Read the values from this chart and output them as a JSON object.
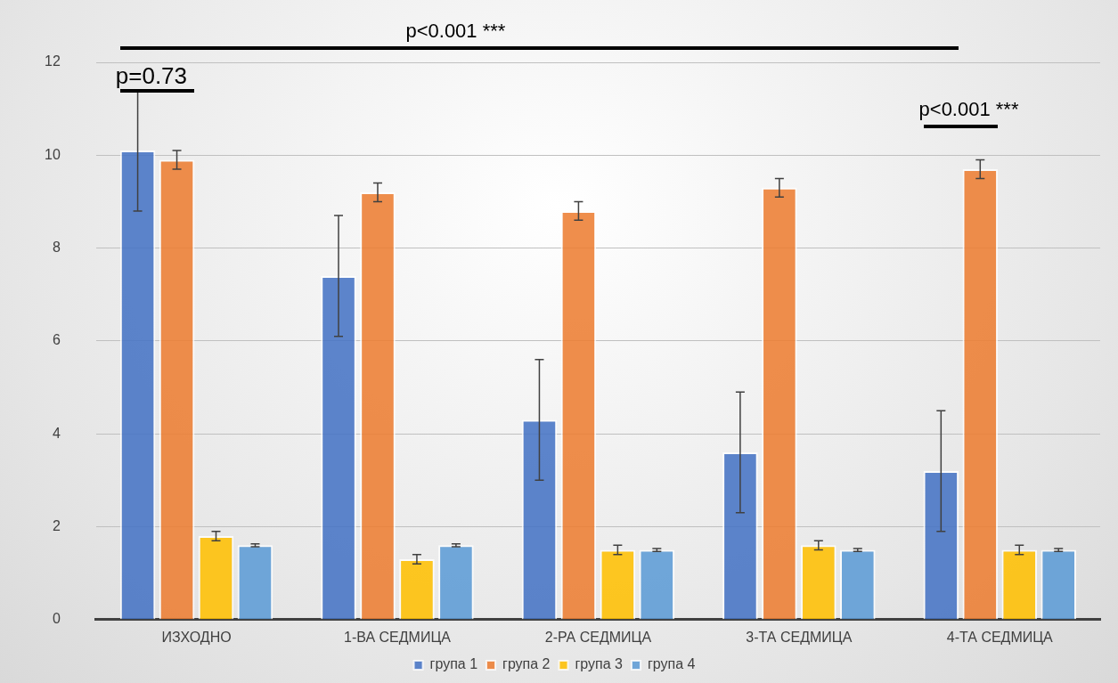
{
  "chart_data": {
    "type": "bar",
    "categories": [
      "ИЗХОДНО",
      "1-ВА СЕДМИЦА",
      "2-РА СЕДМИЦА",
      "3-ТА СЕДМИЦА",
      "4-ТА СЕДМИЦА"
    ],
    "series": [
      {
        "name": "група 1",
        "color": "#4472c4",
        "values": [
          10.1,
          7.4,
          4.3,
          3.6,
          3.2
        ],
        "errors": [
          1.3,
          1.3,
          1.3,
          1.3,
          1.3
        ]
      },
      {
        "name": "група 2",
        "color": "#ed7d31",
        "values": [
          9.9,
          9.2,
          8.8,
          9.3,
          9.7
        ],
        "errors": [
          0.2,
          0.2,
          0.2,
          0.2,
          0.2
        ]
      },
      {
        "name": "група 3",
        "color": "#ffc000",
        "values": [
          1.8,
          1.3,
          1.5,
          1.6,
          1.5
        ],
        "errors": [
          0.1,
          0.1,
          0.1,
          0.1,
          0.1
        ]
      },
      {
        "name": "група 4",
        "color": "#5b9bd5",
        "values": [
          1.6,
          1.6,
          1.5,
          1.5,
          1.5
        ],
        "errors": [
          0.03,
          0.03,
          0.03,
          0.03,
          0.03
        ]
      }
    ],
    "ylim": [
      0,
      12
    ],
    "yticks": [
      0,
      2,
      4,
      6,
      8,
      10,
      12
    ],
    "grid": "y",
    "legend": "bottom",
    "annotations": [
      "p<0.001 ***",
      "p=0.73",
      "p<0.001 ***"
    ]
  }
}
